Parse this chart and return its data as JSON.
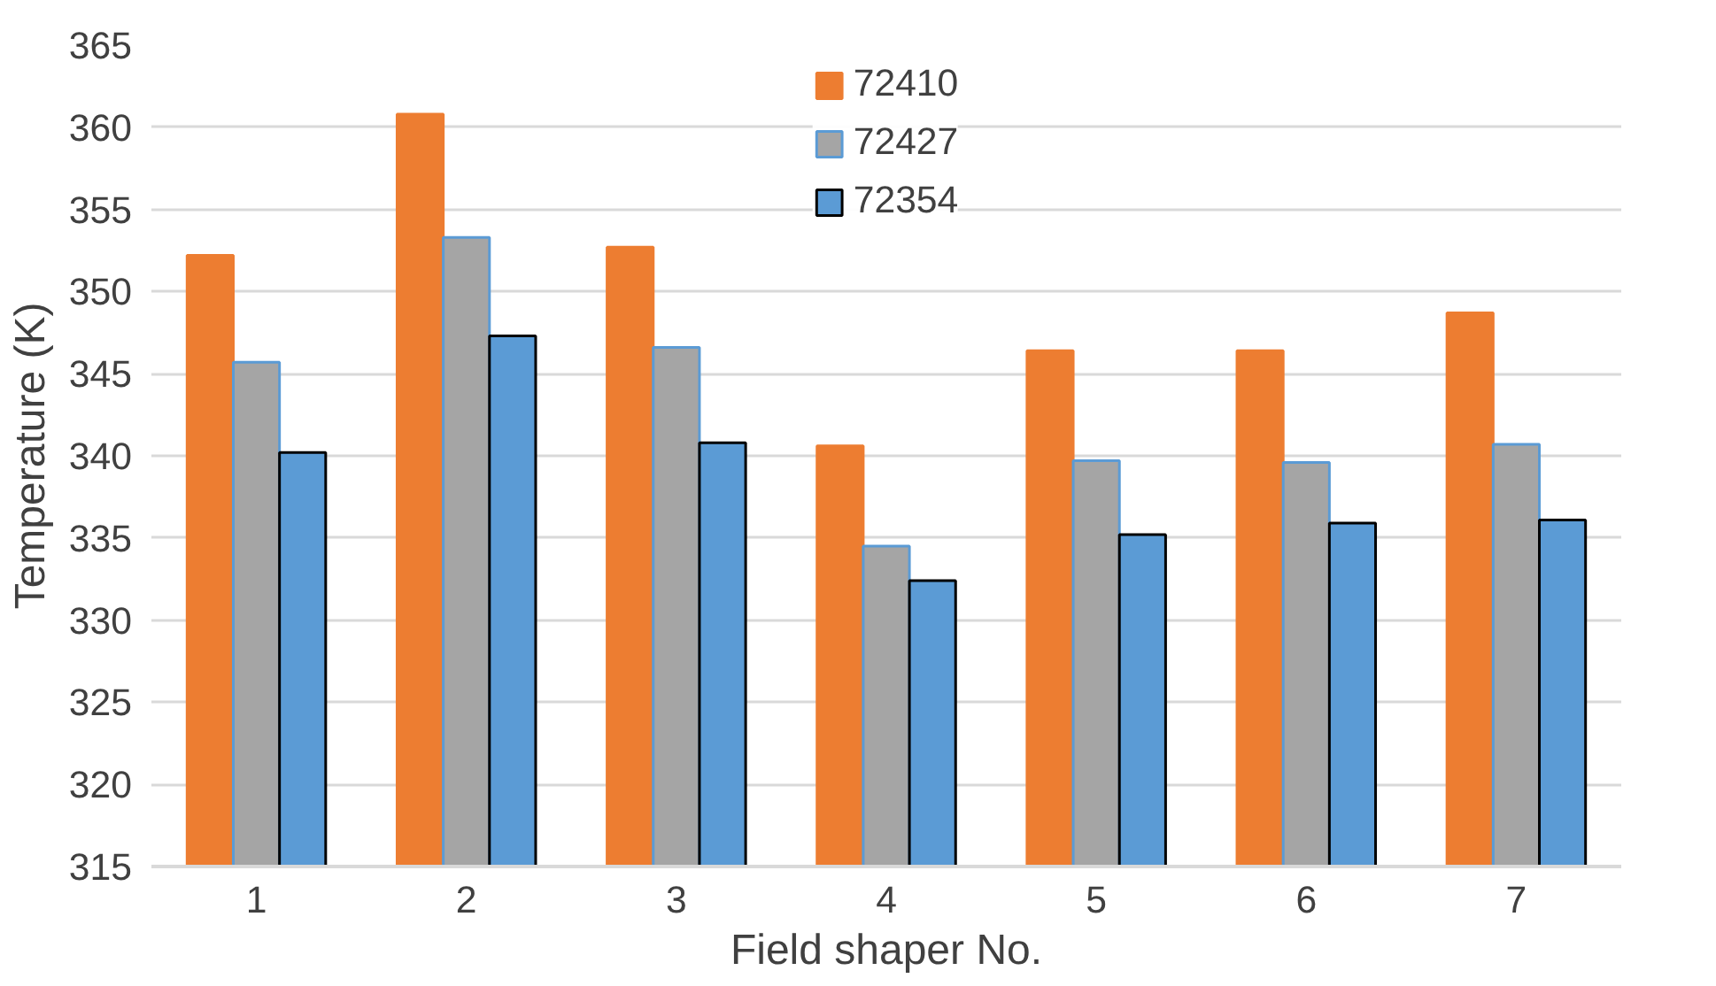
{
  "chart_data": {
    "type": "bar",
    "xlabel": "Field shaper No.",
    "ylabel": "Temperature (K)",
    "categories": [
      "1",
      "2",
      "3",
      "4",
      "5",
      "6",
      "7"
    ],
    "series": [
      {
        "name": "72410",
        "color": "#ed7d31",
        "values": [
          352.2,
          360.8,
          352.7,
          340.6,
          346.4,
          346.4,
          348.7
        ]
      },
      {
        "name": "72427",
        "color": "#a5a5a5",
        "values": [
          345.7,
          353.3,
          346.6,
          334.5,
          339.7,
          339.6,
          340.7
        ]
      },
      {
        "name": "72354",
        "color": "#5b9bd5",
        "values": [
          340.2,
          347.3,
          340.8,
          332.4,
          335.2,
          335.9,
          336.1
        ]
      }
    ],
    "ylim": [
      315,
      365
    ],
    "yticks": [
      315,
      320,
      325,
      330,
      335,
      340,
      345,
      350,
      355,
      360,
      365
    ],
    "grid": "y",
    "legend": "top"
  }
}
